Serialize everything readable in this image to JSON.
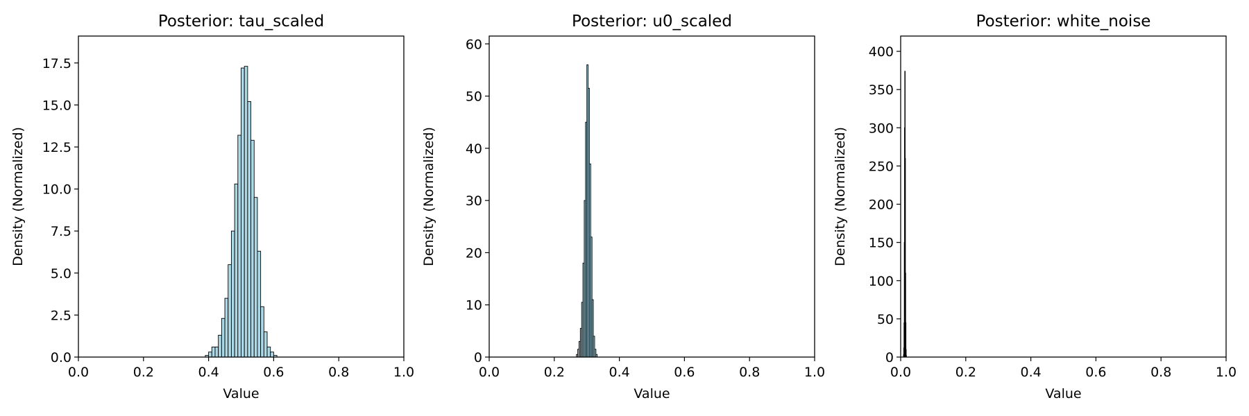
{
  "chart_data": [
    {
      "type": "histogram",
      "title": "Posterior: tau_scaled",
      "xlabel": "Value",
      "ylabel": "Density (Normalized)",
      "xlim": [
        0.0,
        1.0
      ],
      "ylim": [
        0,
        19.1
      ],
      "grid": false,
      "xticks": [
        "0.0",
        "0.2",
        "0.4",
        "0.6",
        "0.8",
        "1.0"
      ],
      "yticks": [
        "0.0",
        "2.5",
        "5.0",
        "7.5",
        "10.0",
        "12.5",
        "15.0",
        "17.5"
      ],
      "bar_color": "#add8e6",
      "edge_color": "#000000",
      "bin_width": 0.01,
      "bins": [
        {
          "x": 0.395,
          "value": 0.1
        },
        {
          "x": 0.405,
          "value": 0.3
        },
        {
          "x": 0.415,
          "value": 0.6
        },
        {
          "x": 0.425,
          "value": 0.6
        },
        {
          "x": 0.435,
          "value": 1.3
        },
        {
          "x": 0.445,
          "value": 2.3
        },
        {
          "x": 0.455,
          "value": 3.5
        },
        {
          "x": 0.465,
          "value": 5.5
        },
        {
          "x": 0.475,
          "value": 7.5
        },
        {
          "x": 0.485,
          "value": 10.3
        },
        {
          "x": 0.495,
          "value": 13.2
        },
        {
          "x": 0.505,
          "value": 17.2
        },
        {
          "x": 0.515,
          "value": 17.3
        },
        {
          "x": 0.525,
          "value": 15.2
        },
        {
          "x": 0.535,
          "value": 12.9
        },
        {
          "x": 0.545,
          "value": 9.5
        },
        {
          "x": 0.555,
          "value": 6.3
        },
        {
          "x": 0.565,
          "value": 3.0
        },
        {
          "x": 0.575,
          "value": 1.5
        },
        {
          "x": 0.585,
          "value": 0.6
        },
        {
          "x": 0.595,
          "value": 0.3
        },
        {
          "x": 0.605,
          "value": 0.1
        }
      ]
    },
    {
      "type": "histogram",
      "title": "Posterior: u0_scaled",
      "xlabel": "Value",
      "ylabel": "Density (Normalized)",
      "xlim": [
        0.0,
        1.0
      ],
      "ylim": [
        0,
        61.5
      ],
      "grid": false,
      "xticks": [
        "0.0",
        "0.2",
        "0.4",
        "0.6",
        "0.8",
        "1.0"
      ],
      "yticks": [
        "0",
        "10",
        "20",
        "30",
        "40",
        "50",
        "60"
      ],
      "bar_color": "#add8e6",
      "edge_color": "#000000",
      "bin_width": 0.004,
      "bins": [
        {
          "x": 0.27,
          "value": 0.5
        },
        {
          "x": 0.274,
          "value": 1.5
        },
        {
          "x": 0.278,
          "value": 3.0
        },
        {
          "x": 0.282,
          "value": 5.5
        },
        {
          "x": 0.286,
          "value": 10.5
        },
        {
          "x": 0.29,
          "value": 18.0
        },
        {
          "x": 0.294,
          "value": 30.0
        },
        {
          "x": 0.298,
          "value": 45.0
        },
        {
          "x": 0.302,
          "value": 56.0
        },
        {
          "x": 0.306,
          "value": 51.5
        },
        {
          "x": 0.31,
          "value": 37.0
        },
        {
          "x": 0.314,
          "value": 23.0
        },
        {
          "x": 0.318,
          "value": 11.0
        },
        {
          "x": 0.322,
          "value": 4.0
        },
        {
          "x": 0.326,
          "value": 1.5
        },
        {
          "x": 0.33,
          "value": 0.5
        }
      ]
    },
    {
      "type": "histogram",
      "title": "Posterior: white_noise",
      "xlabel": "Value",
      "ylabel": "Density (Normalized)",
      "xlim": [
        0.0,
        1.0
      ],
      "ylim": [
        0,
        420
      ],
      "grid": false,
      "xticks": [
        "0.0",
        "0.2",
        "0.4",
        "0.6",
        "0.8",
        "1.0"
      ],
      "yticks": [
        "0",
        "50",
        "100",
        "150",
        "200",
        "250",
        "300",
        "350",
        "400"
      ],
      "bar_color": "#add8e6",
      "edge_color": "#000000",
      "bin_width": 0.0008,
      "bins": [
        {
          "x": 0.009,
          "value": 3
        },
        {
          "x": 0.0098,
          "value": 12
        },
        {
          "x": 0.0106,
          "value": 45
        },
        {
          "x": 0.0114,
          "value": 150
        },
        {
          "x": 0.0122,
          "value": 300
        },
        {
          "x": 0.013,
          "value": 374
        },
        {
          "x": 0.0138,
          "value": 260
        },
        {
          "x": 0.0146,
          "value": 110
        },
        {
          "x": 0.0154,
          "value": 45
        },
        {
          "x": 0.0162,
          "value": 10
        },
        {
          "x": 0.017,
          "value": 2
        }
      ]
    }
  ]
}
